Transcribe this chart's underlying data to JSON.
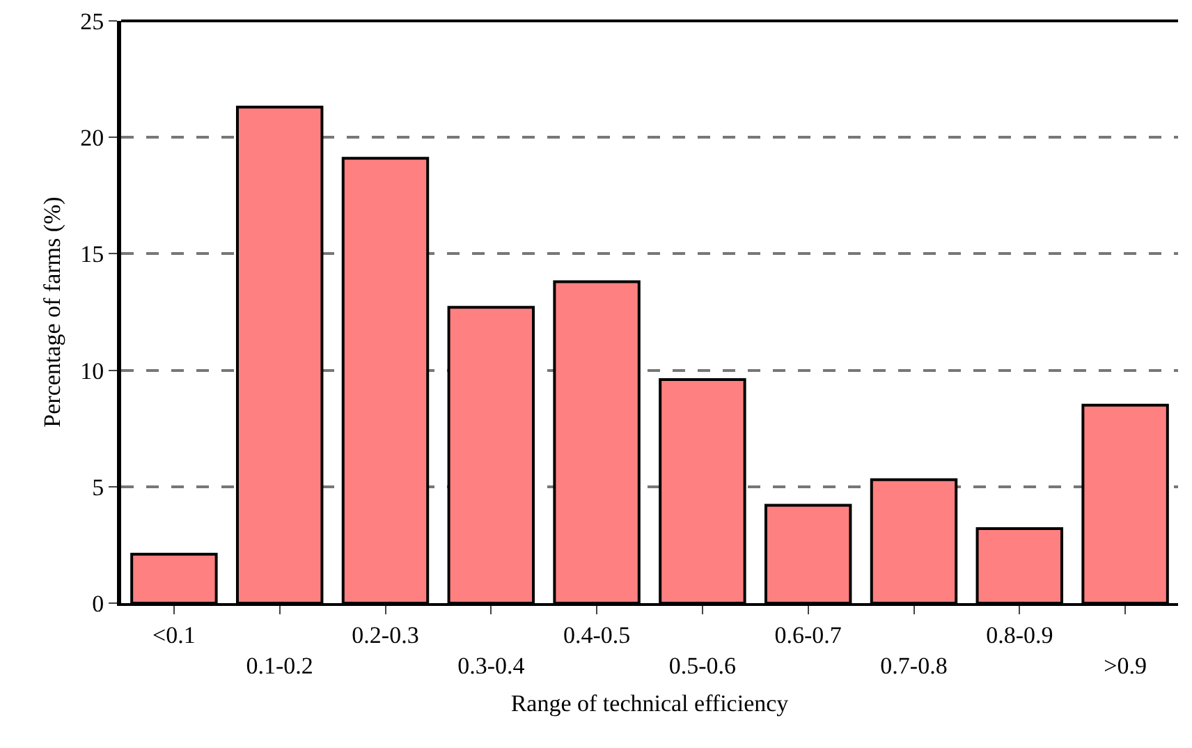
{
  "chart_data": {
    "type": "bar",
    "xlabel": "Range of technical efficiency",
    "ylabel": "Percentage of farms (%)",
    "categories": [
      "<0.1",
      "0.1-0.2",
      "0.2-0.3",
      "0.3-0.4",
      "0.4-0.5",
      "0.5-0.6",
      "0.6-0.7",
      "0.7-0.8",
      "0.8-0.9",
      ">0.9"
    ],
    "values": [
      2.1,
      21.3,
      19.1,
      12.7,
      13.8,
      9.6,
      4.2,
      5.3,
      3.2,
      8.5
    ],
    "color": "#ff8080",
    "ylim": [
      0,
      25
    ],
    "yticks": [
      0,
      5,
      10,
      15,
      20,
      25
    ],
    "grid": "y"
  }
}
